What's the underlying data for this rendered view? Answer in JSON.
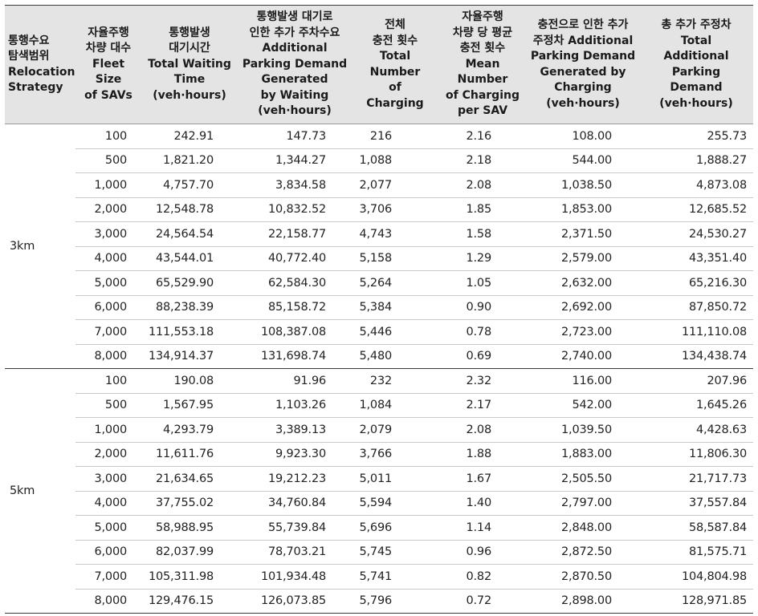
{
  "headers": [
    [
      "통행수요",
      "탐색범위",
      "Relocation",
      "Strategy"
    ],
    [
      "자율주행",
      "차량 대수",
      "Fleet",
      "Size",
      "of SAVs"
    ],
    [
      "통행발생",
      "대기시간",
      "Total Waiting",
      "Time",
      "(veh·hours)"
    ],
    [
      "통행발생 대기로",
      "인한 추가 주차수요",
      "Additional",
      "Parking Demand",
      "Generated",
      "by Waiting",
      "(veh·hours)"
    ],
    [
      "전체",
      "충전 횟수",
      "Total",
      "Number",
      "of",
      "Charging"
    ],
    [
      "자율주행",
      "차량 당 평균",
      "충전 횟수",
      "Mean",
      "Number",
      "of Charging",
      "per SAV"
    ],
    [
      "충전으로 인한 추가",
      "주정차 Additional",
      "Parking Demand",
      "Generated by",
      "Charging",
      "(veh·hours)"
    ],
    [
      "총 추가 주정차",
      "Total",
      "Additional",
      "Parking",
      "Demand",
      "(veh·hours)"
    ]
  ],
  "groups": [
    {
      "label": "3km",
      "rows": [
        [
          "100",
          "242.91",
          "147.73",
          "216",
          "2.16",
          "108.00",
          "255.73"
        ],
        [
          "500",
          "1,821.20",
          "1,344.27",
          "1,088",
          "2.18",
          "544.00",
          "1,888.27"
        ],
        [
          "1,000",
          "4,757.70",
          "3,834.58",
          "2,077",
          "2.08",
          "1,038.50",
          "4,873.08"
        ],
        [
          "2,000",
          "12,548.78",
          "10,832.52",
          "3,706",
          "1.85",
          "1,853.00",
          "12,685.52"
        ],
        [
          "3,000",
          "24,564.54",
          "22,158.77",
          "4,743",
          "1.58",
          "2,371.50",
          "24,530.27"
        ],
        [
          "4,000",
          "43,544.01",
          "40,772.40",
          "5,158",
          "1.29",
          "2,579.00",
          "43,351.40"
        ],
        [
          "5,000",
          "65,529.90",
          "62,584.30",
          "5,264",
          "1.05",
          "2,632.00",
          "65,216.30"
        ],
        [
          "6,000",
          "88,238.39",
          "85,158.72",
          "5,384",
          "0.90",
          "2,692.00",
          "87,850.72"
        ],
        [
          "7,000",
          "111,553.18",
          "108,387.08",
          "5,446",
          "0.78",
          "2,723.00",
          "111,110.08"
        ],
        [
          "8,000",
          "134,914.37",
          "131,698.74",
          "5,480",
          "0.69",
          "2,740.00",
          "134,438.74"
        ]
      ]
    },
    {
      "label": "5km",
      "rows": [
        [
          "100",
          "190.08",
          "91.96",
          "232",
          "2.32",
          "116.00",
          "207.96"
        ],
        [
          "500",
          "1,567.95",
          "1,103.26",
          "1,084",
          "2.17",
          "542.00",
          "1,645.26"
        ],
        [
          "1,000",
          "4,293.79",
          "3,389.13",
          "2,079",
          "2.08",
          "1,039.50",
          "4,428.63"
        ],
        [
          "2,000",
          "11,611.76",
          "9,923.30",
          "3,766",
          "1.88",
          "1,883.00",
          "11,806.30"
        ],
        [
          "3,000",
          "21,634.65",
          "19,212.23",
          "5,011",
          "1.67",
          "2,505.50",
          "21,717.73"
        ],
        [
          "4,000",
          "37,755.02",
          "34,760.84",
          "5,594",
          "1.40",
          "2,797.00",
          "37,557.84"
        ],
        [
          "5,000",
          "58,988.95",
          "55,739.84",
          "5,696",
          "1.14",
          "2,848.00",
          "58,587.84"
        ],
        [
          "6,000",
          "82,037.99",
          "78,703.21",
          "5,745",
          "0.96",
          "2,872.50",
          "81,575.71"
        ],
        [
          "7,000",
          "105,311.98",
          "101,934.48",
          "5,741",
          "0.82",
          "2,870.50",
          "104,804.98"
        ],
        [
          "8,000",
          "129,476.15",
          "126,073.85",
          "5,796",
          "0.72",
          "2,898.00",
          "128,971.85"
        ]
      ]
    }
  ]
}
